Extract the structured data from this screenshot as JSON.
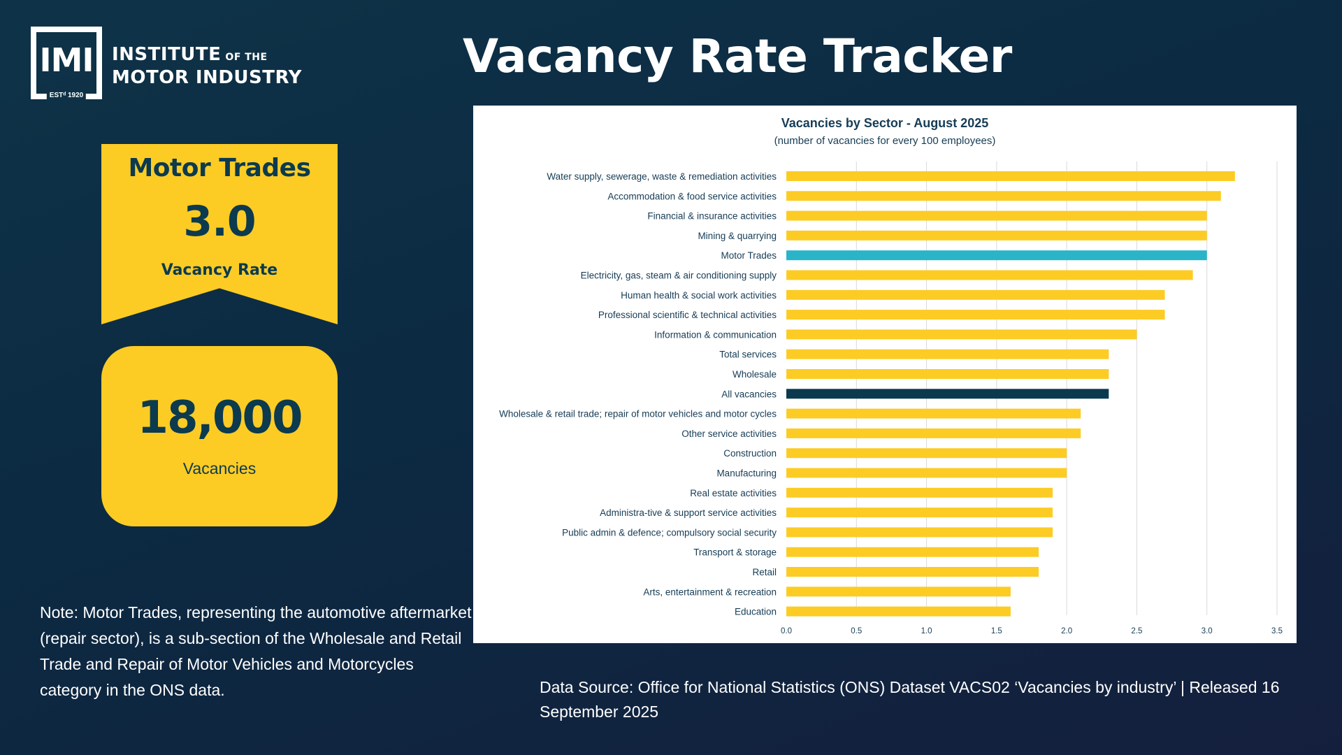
{
  "logo": {
    "abbr": "IMI",
    "est": "ESTᵈ 1920",
    "line1": "INSTITUTE",
    "of_the": "OF THE",
    "line2": "MOTOR INDUSTRY"
  },
  "page_title": "Vacancy Rate Tracker",
  "rate_card": {
    "sector": "Motor Trades",
    "value": "3.0",
    "label": "Vacancy Rate"
  },
  "vacancies_card": {
    "value": "18,000",
    "label": "Vacancies"
  },
  "note": "Note: Motor Trades, representing the automotive aftermarket (repair sector), is a sub-section of the Wholesale and Retail Trade and Repair of Motor Vehicles and Motorcycles category in the ONS data.",
  "source": "Data Source: Office for National Statistics (ONS) Dataset VACS02 ‘Vacancies by industry’ | Released 16 September 2025",
  "colors": {
    "background": "#0e3348",
    "card": "#fccc25",
    "bar_default": "#fccc25",
    "bar_highlight": "#2ab4c8",
    "bar_total": "#0b3a4e",
    "text_dark": "#163c55"
  },
  "chart_data": {
    "type": "bar",
    "orientation": "horizontal",
    "title": "Vacancies by Sector  - August 2025",
    "subtitle": "(number of vacancies for every 100 employees)",
    "xlabel": "",
    "ylabel": "",
    "xlim": [
      0,
      3.5
    ],
    "xticks": [
      "0.0",
      "0.5",
      "1.0",
      "1.5",
      "2.0",
      "2.5",
      "3.0",
      "3.5"
    ],
    "grid": true,
    "categories": [
      "Water supply, sewerage, waste & remediation activities",
      "Accommodation & food service activities",
      "Financial & insurance activities",
      "Mining & quarrying",
      "Motor Trades",
      "Electricity, gas, steam & air conditioning supply",
      "Human health & social work activities",
      "Professional scientific & technical activities",
      "Information & communication",
      "Total services",
      "Wholesale",
      "All vacancies",
      "Wholesale & retail trade; repair of motor vehicles and motor cycles",
      "Other service activities",
      "Construction",
      "Manufacturing",
      "Real estate activities",
      "Administra-tive & support service activities",
      "Public admin & defence; compulsory social security",
      "Transport & storage",
      "Retail",
      "Arts, entertainment & recreation",
      "Education"
    ],
    "values": [
      3.2,
      3.1,
      3.0,
      3.0,
      3.0,
      2.9,
      2.7,
      2.7,
      2.5,
      2.3,
      2.3,
      2.3,
      2.1,
      2.1,
      2.0,
      2.0,
      1.9,
      1.9,
      1.9,
      1.8,
      1.8,
      1.6,
      1.6
    ],
    "highlight": {
      "Motor Trades": "#2ab4c8",
      "All vacancies": "#0b3a4e"
    }
  }
}
